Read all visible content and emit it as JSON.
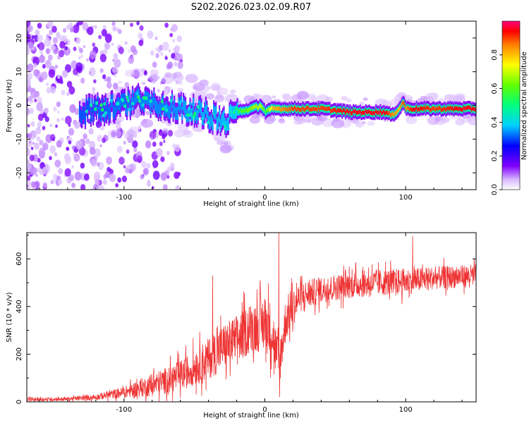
{
  "title": "S202.2026.023.02.09.R07",
  "chart_data": [
    {
      "type": "heatmap",
      "name": "spectrogram",
      "xlabel": "Height of straight line (km)",
      "ylabel": "Frequency (Hz)",
      "xlim": [
        -169,
        150
      ],
      "ylim": [
        -25,
        25
      ],
      "xticks": [
        -100,
        0,
        100
      ],
      "yticks": [
        -20,
        -10,
        0,
        10,
        20
      ],
      "colorbar": {
        "label": "Normalized spectral amplitude",
        "range": [
          0,
          1
        ],
        "ticks": [
          0.0,
          0.2,
          0.4,
          0.6,
          0.8
        ],
        "tick_labels": [
          "0.0",
          "0.2",
          "0.4",
          "0.6",
          "0.8"
        ]
      },
      "ridge": {
        "description": "frequency of peak signal vs height",
        "x": [
          -130,
          -115,
          -100,
          -90,
          -80,
          -70,
          -60,
          -50,
          -40,
          -30,
          -20,
          -10,
          -3,
          0,
          5,
          20,
          40,
          60,
          80,
          85,
          90,
          95,
          98,
          100,
          105,
          120,
          140,
          150
        ],
        "freq": [
          -2,
          -1,
          0,
          2,
          1,
          0,
          -1,
          -2,
          -3,
          -5,
          -2,
          -1,
          0,
          -2,
          -1,
          -1,
          -1,
          -2,
          -2,
          -2,
          -3,
          -1,
          1,
          -1,
          -1,
          -1,
          -1,
          -1
        ],
        "amplitude": [
          0.15,
          0.2,
          0.25,
          0.3,
          0.3,
          0.3,
          0.35,
          0.4,
          0.4,
          0.45,
          0.55,
          0.65,
          0.7,
          0.55,
          0.8,
          0.9,
          0.9,
          0.95,
          0.95,
          0.95,
          0.85,
          0.8,
          0.9,
          0.85,
          0.95,
          0.9,
          0.95,
          0.95
        ]
      }
    },
    {
      "type": "line",
      "name": "snr",
      "xlabel": "Height of straight line (km)",
      "ylabel": "SNR (10 * v/v)",
      "xlim": [
        -169,
        150
      ],
      "ylim": [
        0,
        710
      ],
      "xticks": [
        -100,
        0,
        100
      ],
      "yticks": [
        0,
        200,
        400,
        600
      ],
      "color": "#ee3333",
      "envelope": {
        "x": [
          -169,
          -140,
          -120,
          -100,
          -80,
          -60,
          -40,
          -30,
          -20,
          -10,
          0,
          5,
          10,
          15,
          25,
          40,
          60,
          80,
          100,
          120,
          150
        ],
        "mean": [
          10,
          12,
          20,
          40,
          70,
          110,
          180,
          230,
          260,
          310,
          330,
          300,
          150,
          350,
          440,
          470,
          490,
          500,
          505,
          520,
          530
        ],
        "spread": [
          10,
          10,
          15,
          30,
          60,
          80,
          110,
          120,
          130,
          130,
          150,
          150,
          120,
          120,
          80,
          70,
          70,
          70,
          70,
          60,
          60
        ]
      },
      "spikes": [
        {
          "x": 10,
          "y": 710
        },
        {
          "x": 10.5,
          "y": 20
        },
        {
          "x": 105,
          "y": 695
        },
        {
          "x": -37,
          "y": 530
        }
      ]
    }
  ]
}
